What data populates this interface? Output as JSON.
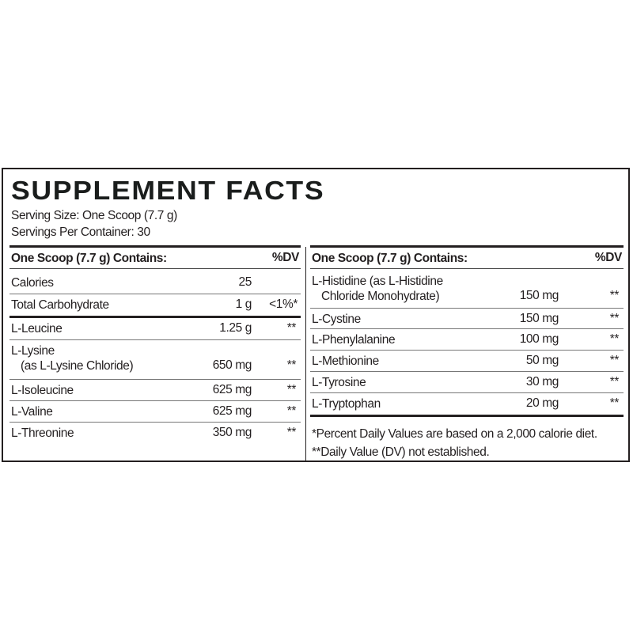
{
  "title": "SUPPLEMENT FACTS",
  "serving_size": "Serving Size: One Scoop (7.7 g)",
  "servings_per_container": "Servings Per Container: 30",
  "left": {
    "header": {
      "label": "One Scoop (7.7 g) Contains:",
      "dv": "%DV"
    },
    "rows": [
      {
        "name": "Calories",
        "amount": "25",
        "dv": ""
      },
      {
        "name": "Total Carbohydrate",
        "amount": "1 g",
        "dv": "<1%*"
      },
      {
        "name": "L-Leucine",
        "amount": "1.25 g",
        "dv": "**"
      },
      {
        "name": "L-Lysine",
        "name2": "(as L-Lysine Chloride)",
        "amount": "650 mg",
        "dv": "**"
      },
      {
        "name": "L-Isoleucine",
        "amount": "625 mg",
        "dv": "**"
      },
      {
        "name": "L-Valine",
        "amount": "625 mg",
        "dv": "**"
      },
      {
        "name": "L-Threonine",
        "amount": "350 mg",
        "dv": "**"
      }
    ]
  },
  "right": {
    "header": {
      "label": "One Scoop (7.7 g) Contains:",
      "dv": "%DV"
    },
    "rows": [
      {
        "name": "L-Histidine (as L-Histidine",
        "name2": "Chloride Monohydrate)",
        "amount": "150 mg",
        "dv": "**"
      },
      {
        "name": "L-Cystine",
        "amount": "150 mg",
        "dv": "**"
      },
      {
        "name": "L-Phenylalanine",
        "amount": "100 mg",
        "dv": "**"
      },
      {
        "name": "L-Methionine",
        "amount": "50 mg",
        "dv": "**"
      },
      {
        "name": "L-Tyrosine",
        "amount": "30 mg",
        "dv": "**"
      },
      {
        "name": "L-Tryptophan",
        "amount": "20 mg",
        "dv": "**"
      }
    ]
  },
  "footnotes": [
    "*Percent Daily Values are based on a 2,000 calorie diet.",
    "**Daily Value (DV) not established."
  ]
}
